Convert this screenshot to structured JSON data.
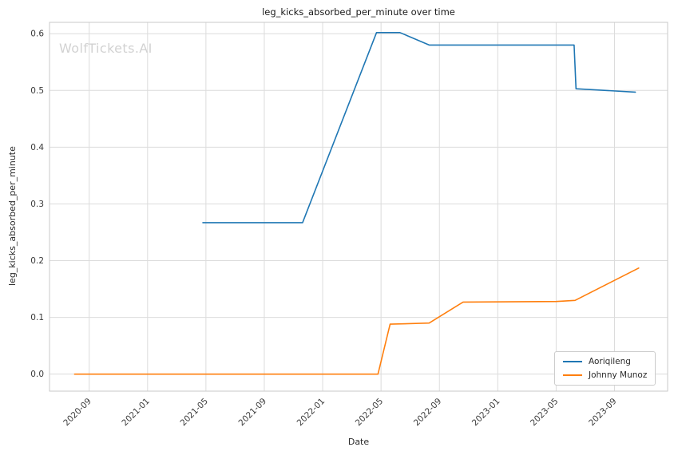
{
  "watermark": "WolfTickets.AI",
  "chart_data": {
    "type": "line",
    "title": "leg_kicks_absorbed_per_minute over time",
    "xlabel": "Date",
    "ylabel": "leg_kicks_absorbed_per_minute",
    "x_ticks": [
      "2020-09",
      "2021-01",
      "2021-05",
      "2021-09",
      "2022-01",
      "2022-05",
      "2022-09",
      "2023-01",
      "2023-05",
      "2023-09"
    ],
    "y_ticks": [
      0.0,
      0.1,
      0.2,
      0.3,
      0.4,
      0.5,
      0.6
    ],
    "xlim_decimal_years": [
      2020.44,
      2023.97
    ],
    "ylim": [
      -0.03,
      0.62
    ],
    "grid": true,
    "legend_position": "lower right",
    "series": [
      {
        "name": "Aoriqileng",
        "color": "#1f77b4",
        "points": [
          [
            "2021-04-25",
            0.267
          ],
          [
            "2021-11-20",
            0.267
          ],
          [
            "2022-04-22",
            0.602
          ],
          [
            "2022-06-10",
            0.602
          ],
          [
            "2022-08-10",
            0.58
          ],
          [
            "2023-06-08",
            0.58
          ],
          [
            "2023-06-12",
            0.503
          ],
          [
            "2023-10-14",
            0.497
          ]
        ]
      },
      {
        "name": "Johnny Munoz",
        "color": "#ff7f0e",
        "points": [
          [
            "2020-08-01",
            0.0
          ],
          [
            "2022-04-25",
            0.0
          ],
          [
            "2022-05-20",
            0.088
          ],
          [
            "2022-08-10",
            0.09
          ],
          [
            "2022-10-20",
            0.127
          ],
          [
            "2023-05-01",
            0.128
          ],
          [
            "2023-06-10",
            0.13
          ],
          [
            "2023-10-21",
            0.187
          ]
        ]
      }
    ]
  }
}
